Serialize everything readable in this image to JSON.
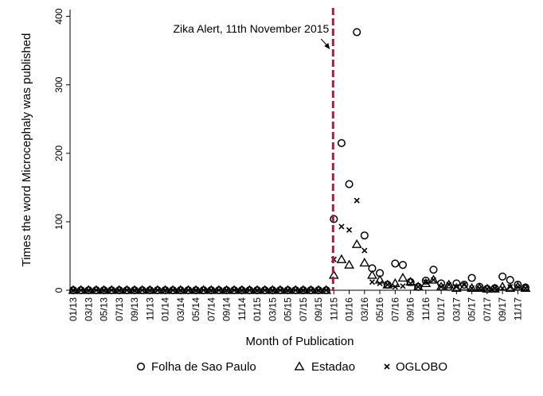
{
  "chart_data": {
    "type": "scatter",
    "xlabel": "Month of Publication",
    "ylabel": "Times the word Microcephaly was published",
    "ylim": [
      0,
      410
    ],
    "yticks": [
      0,
      100,
      200,
      300,
      400
    ],
    "grid": false,
    "legend_position": "bottom",
    "categories": [
      "01/13",
      "02/13",
      "03/13",
      "04/13",
      "05/13",
      "06/13",
      "07/13",
      "08/13",
      "09/13",
      "10/13",
      "11/13",
      "12/13",
      "01/14",
      "02/14",
      "03/14",
      "04/14",
      "05/14",
      "06/14",
      "07/14",
      "08/14",
      "09/14",
      "10/14",
      "11/14",
      "12/14",
      "01/15",
      "02/15",
      "03/15",
      "04/15",
      "05/15",
      "06/15",
      "07/15",
      "08/15",
      "09/15",
      "10/15",
      "11/15",
      "12/15",
      "01/16",
      "02/16",
      "03/16",
      "04/16",
      "05/16",
      "06/16",
      "07/16",
      "08/16",
      "09/16",
      "10/16",
      "11/16",
      "12/16",
      "01/17",
      "02/17",
      "03/17",
      "04/17",
      "05/17",
      "06/17",
      "07/17",
      "08/17",
      "09/17",
      "10/17",
      "11/17",
      "12/17"
    ],
    "xtick_labels": [
      "01/13",
      "03/13",
      "05/13",
      "07/13",
      "09/13",
      "11/13",
      "01/14",
      "03/14",
      "05/14",
      "07/14",
      "09/14",
      "11/14",
      "01/15",
      "03/15",
      "05/15",
      "07/15",
      "09/15",
      "11/15",
      "01/16",
      "03/16",
      "05/16",
      "07/16",
      "09/16",
      "11/16",
      "01/17",
      "03/17",
      "05/17",
      "07/17",
      "09/17",
      "11/17"
    ],
    "series": [
      {
        "name": "Folha de Sao Paulo",
        "marker": "circle",
        "values": [
          0,
          0,
          0,
          0,
          0,
          0,
          0,
          0,
          0,
          0,
          0,
          0,
          0,
          0,
          0,
          0,
          0,
          0,
          0,
          0,
          0,
          0,
          0,
          0,
          0,
          0,
          0,
          0,
          0,
          0,
          0,
          0,
          0,
          0,
          104,
          215,
          155,
          377,
          80,
          32,
          25,
          8,
          39,
          37,
          12,
          5,
          14,
          30,
          10,
          5,
          10,
          8,
          18,
          5,
          2,
          3,
          20,
          15,
          8,
          4
        ]
      },
      {
        "name": "Estadao",
        "marker": "triangle",
        "values": [
          0,
          0,
          0,
          0,
          0,
          0,
          0,
          0,
          0,
          0,
          0,
          0,
          0,
          0,
          0,
          0,
          0,
          0,
          0,
          0,
          0,
          0,
          0,
          0,
          0,
          0,
          0,
          0,
          0,
          0,
          0,
          0,
          0,
          0,
          22,
          45,
          37,
          67,
          40,
          22,
          15,
          8,
          10,
          18,
          12,
          5,
          10,
          15,
          5,
          8,
          3,
          5,
          3,
          3,
          2,
          2,
          5,
          3,
          5,
          3
        ]
      },
      {
        "name": "OGLOBO",
        "marker": "x",
        "values": [
          0,
          0,
          0,
          0,
          0,
          0,
          0,
          0,
          0,
          0,
          0,
          0,
          0,
          0,
          0,
          0,
          0,
          0,
          0,
          0,
          0,
          0,
          0,
          0,
          0,
          0,
          0,
          0,
          0,
          0,
          0,
          0,
          0,
          0,
          45,
          93,
          88,
          131,
          58,
          12,
          10,
          8,
          5,
          6,
          10,
          5,
          12,
          15,
          5,
          8,
          5,
          8,
          3,
          3,
          2,
          3,
          3,
          5,
          5,
          3
        ]
      }
    ],
    "annotations": [
      {
        "text": "Zika Alert, 11th November 2015",
        "x_category": "11/15"
      }
    ],
    "colors": {
      "vline": "#c8103e",
      "marker": "#000000",
      "axis": "#000000"
    }
  }
}
